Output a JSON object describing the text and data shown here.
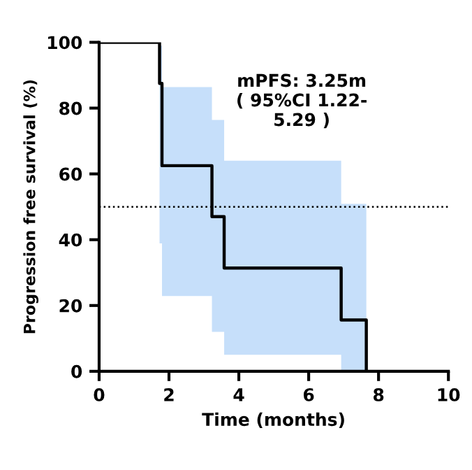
{
  "chart_data": {
    "type": "step",
    "xlabel": "Time (months)",
    "ylabel": "Progression free survival (%)",
    "xlim": [
      0,
      10
    ],
    "ylim": [
      0,
      100
    ],
    "xticks": [
      0,
      2,
      4,
      6,
      8,
      10
    ],
    "yticks": [
      0,
      20,
      40,
      60,
      80,
      100
    ],
    "grid": false,
    "series": [
      {
        "color": "#000000",
        "x": [
          0,
          1.73,
          1.8,
          3.23,
          3.58,
          6.93,
          7.65
        ],
        "values": [
          100,
          87.5,
          62.5,
          47,
          31.4,
          15.6,
          0
        ],
        "lower": [
          null,
          38.9,
          22.9,
          12,
          5,
          0,
          0
        ],
        "upper": [
          null,
          99,
          86.4,
          76.4,
          64,
          50.9,
          50.9
        ]
      }
    ],
    "ref_lines": [
      {
        "axis": "y",
        "value": 50,
        "line_style": "dotted",
        "color": "#000000"
      }
    ],
    "annotations": [
      "mPFS: 3.25m\n( 95%CI 1.22-\n5.29 )"
    ]
  }
}
